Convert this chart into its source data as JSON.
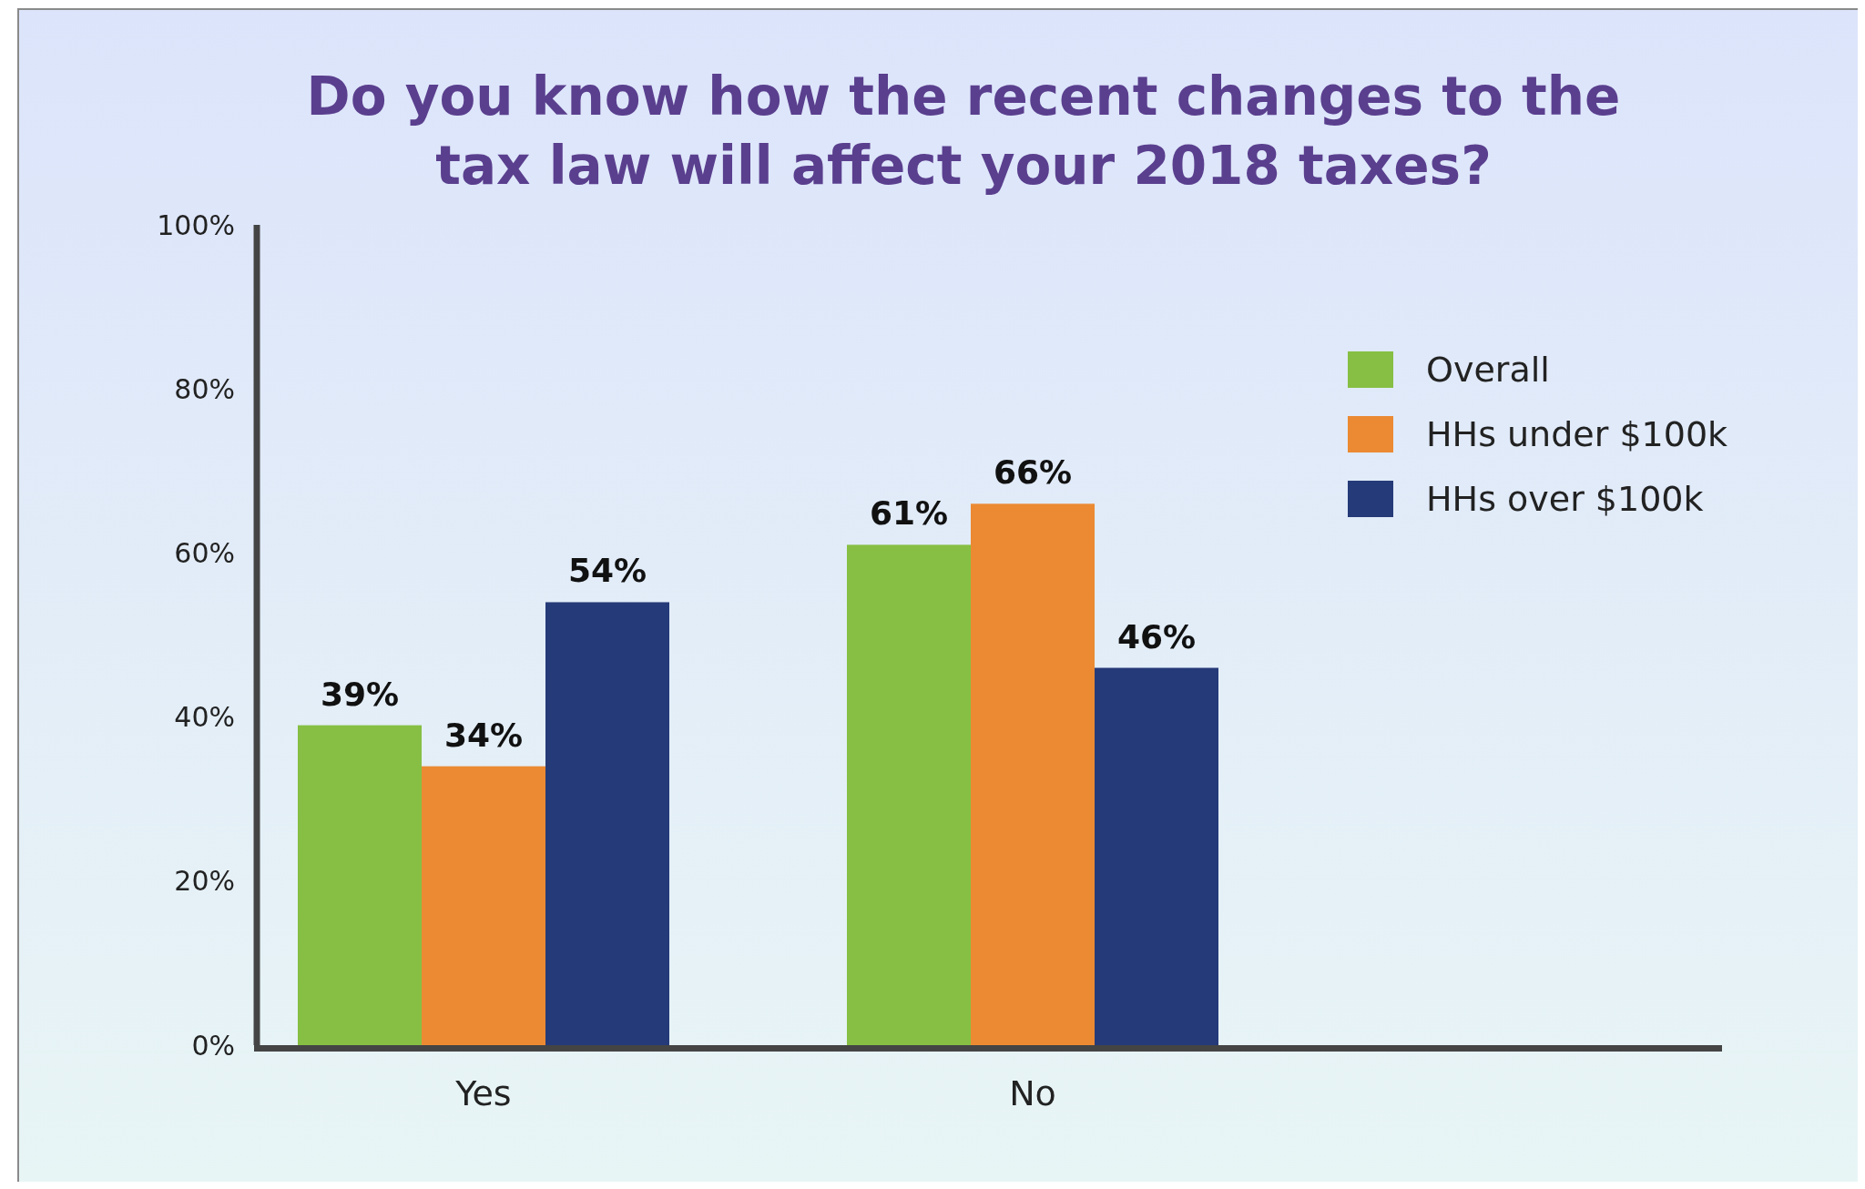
{
  "chart_data": {
    "type": "bar",
    "title": "Do you know how the recent changes to the\ntax law will affect your 2018 taxes?",
    "categories": [
      "Yes",
      "No"
    ],
    "series": [
      {
        "name": "Overall",
        "color": "#86bf43",
        "values": [
          39,
          61
        ]
      },
      {
        "name": "HHs under $100k",
        "color": "#eb8a33",
        "values": [
          34,
          66
        ]
      },
      {
        "name": "HHs over $100k",
        "color": "#253a78",
        "values": [
          54,
          46
        ]
      }
    ],
    "ylim": [
      0,
      100
    ],
    "yticks": [
      {
        "value": 0,
        "label": "0%"
      },
      {
        "value": 20,
        "label": "20%"
      },
      {
        "value": 40,
        "label": "40%"
      },
      {
        "value": 60,
        "label": "60%"
      },
      {
        "value": 80,
        "label": "80%"
      },
      {
        "value": 100,
        "label": "100%"
      }
    ],
    "value_labels": [
      [
        "39%",
        "61%"
      ],
      [
        "34%",
        "66%"
      ],
      [
        "54%",
        "46%"
      ]
    ],
    "grid": false,
    "legend": "right"
  }
}
